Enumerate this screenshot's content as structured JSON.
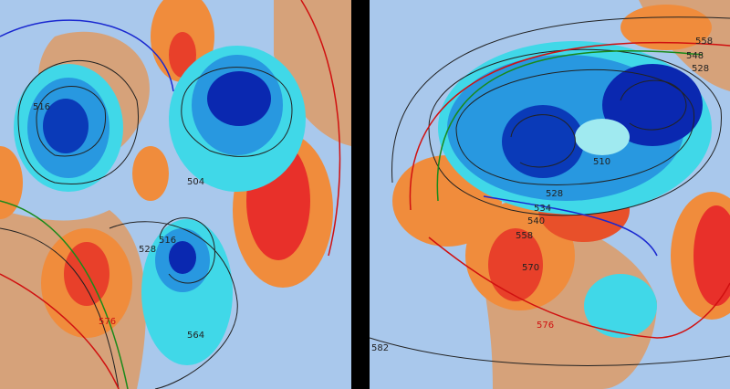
{
  "panels": [
    {
      "labels": [
        "516",
        "504",
        "516",
        "528",
        "576",
        "564"
      ]
    },
    {
      "labels": [
        "558",
        "548",
        "528",
        "510",
        "528",
        "534",
        "540",
        "558",
        "570",
        "576",
        "582"
      ]
    }
  ]
}
